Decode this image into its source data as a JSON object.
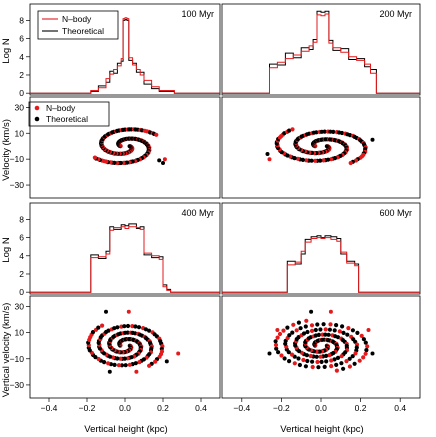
{
  "chart_data": {
    "type": "multi-panel",
    "legend": {
      "histogram": [
        {
          "name": "N–body",
          "color": "#e41a1c",
          "style": "line"
        },
        {
          "name": "Theoretical",
          "color": "#000000",
          "style": "line"
        }
      ],
      "phase": [
        {
          "name": "N–body",
          "color": "#e41a1c",
          "style": "point"
        },
        {
          "name": "Theoretical",
          "color": "#000000",
          "style": "point"
        }
      ],
      "placement": "top-left"
    },
    "x_axis": {
      "label": "Vertical height (kpc)",
      "range": [
        -0.5,
        0.5
      ],
      "ticks": [
        -0.4,
        -0.2,
        0.0,
        0.2,
        0.4
      ],
      "tick_labels": [
        "−0.4",
        "−0.2",
        "0.0",
        "0.2",
        "0.4"
      ]
    },
    "hist_axis": {
      "label": "Log N",
      "range": [
        -0.2,
        9.8
      ],
      "ticks": [
        0,
        2,
        4,
        6,
        8
      ],
      "tick_labels": [
        "0",
        "2",
        "4",
        "6",
        "8"
      ]
    },
    "vel_axis_top": {
      "label": "Velocity (km/s)",
      "range": [
        -40,
        38
      ],
      "ticks": [
        -30,
        -10,
        10,
        30
      ],
      "tick_labels": [
        "−30",
        "−10",
        "10",
        "30"
      ]
    },
    "vel_axis_bottom": {
      "label": "Vertical velocity (km/s)",
      "range": [
        -40,
        38
      ],
      "ticks": [
        -30,
        -10,
        10,
        30
      ],
      "tick_labels": [
        "−30",
        "−10",
        "10",
        "30"
      ]
    },
    "snapshots": [
      {
        "time_label": "100 Myr",
        "histogram": {
          "x": [
            -0.26,
            -0.18,
            -0.14,
            -0.1,
            -0.08,
            -0.06,
            -0.04,
            -0.02,
            -0.01,
            0.0,
            0.01,
            0.02,
            0.04,
            0.06,
            0.08,
            0.1,
            0.14,
            0.18,
            0.26
          ],
          "nbody": [
            0,
            0.3,
            0.6,
            1.6,
            2.1,
            2.6,
            3.0,
            3.8,
            8.2,
            8.3,
            8.2,
            3.9,
            3.1,
            2.6,
            2.0,
            1.4,
            0.7,
            0.3,
            0
          ],
          "theoretical": [
            0,
            0.2,
            0.8,
            1.2,
            2.4,
            2.2,
            3.3,
            3.5,
            8.0,
            8.1,
            8.0,
            3.6,
            3.3,
            2.3,
            2.3,
            1.0,
            0.5,
            0.2,
            0
          ]
        },
        "phase": {
          "amplitude_kpc": 0.2,
          "amplitude_kms": 15,
          "turns": 0.9,
          "outliers": [
            [
              0.18,
              -11
            ],
            [
              0.21,
              -10
            ],
            [
              0.2,
              -13
            ]
          ]
        }
      },
      {
        "time_label": "200 Myr",
        "histogram": {
          "x": [
            -0.28,
            -0.26,
            -0.22,
            -0.18,
            -0.14,
            -0.1,
            -0.06,
            -0.04,
            -0.02,
            0.0,
            0.02,
            0.04,
            0.06,
            0.1,
            0.14,
            0.18,
            0.22,
            0.25,
            0.28
          ],
          "nbody": [
            0,
            2.8,
            3.4,
            3.8,
            4.2,
            4.6,
            5.2,
            5.6,
            8.6,
            8.5,
            8.7,
            5.5,
            5.0,
            4.5,
            4.0,
            3.6,
            3.2,
            2.2,
            0
          ],
          "theoretical": [
            0,
            3.2,
            3.1,
            4.4,
            3.9,
            5.0,
            4.8,
            5.9,
            9.0,
            8.9,
            9.0,
            5.8,
            4.7,
            4.9,
            3.7,
            3.8,
            2.9,
            2.6,
            0
          ]
        },
        "phase": {
          "amplitude_kpc": 0.25,
          "amplitude_kms": 16,
          "turns": 1.15,
          "outliers": [
            [
              -0.27,
              -6
            ],
            [
              -0.26,
              -10
            ],
            [
              0.26,
              5
            ]
          ]
        }
      },
      {
        "time_label": "400 Myr",
        "histogram": {
          "x": [
            -0.2,
            -0.18,
            -0.14,
            -0.1,
            -0.08,
            -0.06,
            -0.02,
            0.0,
            0.02,
            0.06,
            0.08,
            0.1,
            0.14,
            0.18,
            0.2,
            0.22,
            0.24
          ],
          "nbody": [
            0,
            3.8,
            3.9,
            4.2,
            6.8,
            7.1,
            7.2,
            7.0,
            7.2,
            7.1,
            6.9,
            4.3,
            4.0,
            3.6,
            0.6,
            0.2,
            0
          ],
          "theoretical": [
            0,
            4.1,
            3.7,
            4.5,
            7.2,
            6.9,
            7.4,
            7.3,
            7.5,
            7.0,
            7.2,
            4.1,
            3.8,
            3.9,
            0.8,
            0.3,
            0
          ]
        },
        "phase": {
          "amplitude_kpc": 0.21,
          "amplitude_kms": 19,
          "turns": 1.65,
          "outliers": [
            [
              -0.1,
              26
            ],
            [
              0.02,
              26
            ],
            [
              0.22,
              -12
            ],
            [
              0.28,
              -6
            ],
            [
              -0.08,
              -20
            ],
            [
              0.06,
              -20
            ]
          ]
        }
      },
      {
        "time_label": "600 Myr",
        "histogram": {
          "x": [
            -0.19,
            -0.17,
            -0.13,
            -0.1,
            -0.08,
            -0.05,
            -0.02,
            0.0,
            0.02,
            0.05,
            0.08,
            0.1,
            0.13,
            0.17,
            0.19
          ],
          "nbody": [
            0,
            3.0,
            3.3,
            4.5,
            5.5,
            5.9,
            6.0,
            5.9,
            6.0,
            5.8,
            5.6,
            4.4,
            3.2,
            2.9,
            0
          ],
          "theoretical": [
            0,
            3.4,
            3.1,
            4.2,
            5.8,
            6.1,
            6.2,
            6.0,
            6.2,
            6.1,
            5.9,
            4.2,
            3.4,
            3.1,
            0
          ]
        },
        "phase": {
          "amplitude_kpc": 0.25,
          "amplitude_kms": 20,
          "turns": 2.2,
          "outliers": [
            [
              -0.26,
              -6
            ],
            [
              -0.22,
              12
            ],
            [
              0.26,
              -6
            ],
            [
              0.24,
              12
            ],
            [
              -0.05,
              26
            ],
            [
              0.05,
              26
            ]
          ]
        }
      }
    ]
  }
}
